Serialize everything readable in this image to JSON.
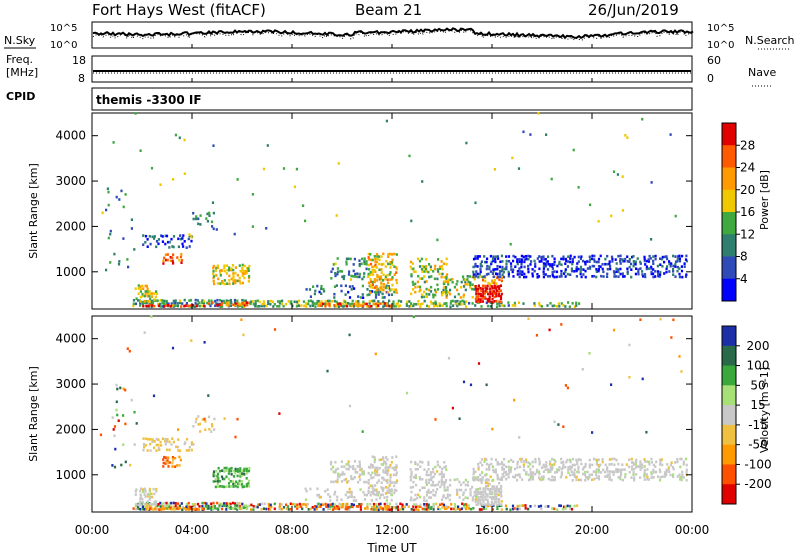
{
  "header": {
    "station": "Fort Hays West (fitACF)",
    "beam": "Beam 21",
    "date": "26/Jun/2019"
  },
  "status_panels": {
    "nsky_label": "N.Sky",
    "nsearch_label": "N.Search",
    "freq_label_line1": "Freq.",
    "freq_label_line2": "[MHz]",
    "nave_label": "Nave",
    "cpid_label": "CPID",
    "cpid_value": "themis -3300 IF",
    "noise_ticks_left": [
      "10^5",
      "10^0"
    ],
    "noise_ticks_right": [
      "10^5",
      "10^0"
    ],
    "freq_ticks": [
      "18",
      "8"
    ],
    "nave_ticks": [
      "60",
      "0"
    ]
  },
  "chart_data": [
    {
      "type": "heatmap",
      "name": "power",
      "ylabel": "Slant Range [km]",
      "xlabel": "Time UT",
      "x_ticks": [
        "00:00",
        "04:00",
        "08:00",
        "12:00",
        "16:00",
        "20:00",
        "00:00"
      ],
      "xlim_hours": [
        0,
        24
      ],
      "ylim_km": [
        180,
        4500
      ],
      "y_ticks": [
        1000,
        2000,
        3000,
        4000
      ],
      "colorbar": {
        "label": "Power [dB]",
        "ticks": [
          4,
          8,
          12,
          16,
          20,
          24,
          28
        ],
        "range": [
          0,
          32
        ],
        "colors": [
          "#0000ff",
          "#2f4bb8",
          "#2f7f6f",
          "#3fa83f",
          "#f0c800",
          "#ff9a00",
          "#ff5a00",
          "#e00000"
        ]
      },
      "scatter_regions": [
        {
          "t0": 1.6,
          "t1": 6.2,
          "r0": 200,
          "r1": 380,
          "density": 0.75,
          "level": 0.35
        },
        {
          "t0": 2.0,
          "t1": 4.5,
          "r0": 200,
          "r1": 280,
          "density": 0.7,
          "level": 0.9
        },
        {
          "t0": 4.5,
          "t1": 6.3,
          "r0": 220,
          "r1": 320,
          "density": 0.6,
          "level": 0.75
        },
        {
          "t0": 6.3,
          "t1": 15.0,
          "r0": 200,
          "r1": 360,
          "density": 0.6,
          "level": 0.45
        },
        {
          "t0": 9.0,
          "t1": 12.0,
          "r0": 210,
          "r1": 300,
          "density": 0.5,
          "level": 0.8
        },
        {
          "t0": 15.0,
          "t1": 19.5,
          "r0": 200,
          "r1": 330,
          "density": 0.45,
          "level": 0.4
        },
        {
          "t0": 1.7,
          "t1": 2.6,
          "r0": 300,
          "r1": 700,
          "density": 0.55,
          "level": 0.55
        },
        {
          "t0": 2.0,
          "t1": 4.0,
          "r0": 1500,
          "r1": 1800,
          "density": 0.4,
          "level": 0.2
        },
        {
          "t0": 2.8,
          "t1": 3.6,
          "r0": 1150,
          "r1": 1400,
          "density": 0.6,
          "level": 0.75
        },
        {
          "t0": 4.8,
          "t1": 6.3,
          "r0": 700,
          "r1": 1150,
          "density": 0.6,
          "level": 0.55
        },
        {
          "t0": 4.0,
          "t1": 5.0,
          "r0": 1900,
          "r1": 2300,
          "density": 0.2,
          "level": 0.3
        },
        {
          "t0": 0.5,
          "t1": 1.8,
          "r0": 1000,
          "r1": 2900,
          "density": 0.05,
          "level": 0.3
        },
        {
          "t0": 8.5,
          "t1": 12.0,
          "r0": 400,
          "r1": 700,
          "density": 0.25,
          "level": 0.25
        },
        {
          "t0": 9.5,
          "t1": 11.0,
          "r0": 800,
          "r1": 1300,
          "density": 0.3,
          "level": 0.35
        },
        {
          "t0": 11.0,
          "t1": 12.2,
          "r0": 500,
          "r1": 1400,
          "density": 0.45,
          "level": 0.6
        },
        {
          "t0": 12.7,
          "t1": 14.2,
          "r0": 400,
          "r1": 1300,
          "density": 0.35,
          "level": 0.5
        },
        {
          "t0": 14.0,
          "t1": 15.5,
          "r0": 400,
          "r1": 900,
          "density": 0.3,
          "level": 0.5
        },
        {
          "t0": 15.3,
          "t1": 16.4,
          "r0": 300,
          "r1": 700,
          "density": 0.9,
          "level": 0.95
        },
        {
          "t0": 15.5,
          "t1": 16.4,
          "r0": 700,
          "r1": 900,
          "density": 0.6,
          "level": 0.7
        },
        {
          "t0": 15.2,
          "t1": 23.8,
          "r0": 850,
          "r1": 1350,
          "density": 0.45,
          "level": 0.15
        },
        {
          "t0": 0.2,
          "t1": 23.8,
          "r0": 1500,
          "r1": 4500,
          "density": 0.004,
          "level": 0.4
        }
      ]
    },
    {
      "type": "heatmap",
      "name": "velocity",
      "ylabel": "Slant Range [km]",
      "xlabel": "Time UT",
      "x_ticks": [
        "00:00",
        "04:00",
        "08:00",
        "12:00",
        "16:00",
        "20:00",
        "00:00"
      ],
      "xlim_hours": [
        0,
        24
      ],
      "ylim_km": [
        180,
        4500
      ],
      "y_ticks": [
        1000,
        2000,
        3000,
        4000
      ],
      "colorbar": {
        "label": "Velocity [m s-1]",
        "ticks": [
          "200",
          "100",
          "50",
          "15",
          "-15",
          "-50",
          "-100",
          "-200"
        ],
        "colors": [
          "#1c2fa8",
          "#2a6a4a",
          "#3aa83a",
          "#a8e078",
          "#c8c8c8",
          "#f0c040",
          "#ff9a00",
          "#ff5000",
          "#e00000"
        ]
      },
      "scatter_regions": [
        {
          "t0": 1.6,
          "t1": 6.2,
          "r0": 200,
          "r1": 380,
          "density": 0.75,
          "kind": "mix"
        },
        {
          "t0": 2.0,
          "t1": 4.5,
          "r0": 200,
          "r1": 280,
          "density": 0.7,
          "kind": "neg"
        },
        {
          "t0": 4.5,
          "t1": 6.3,
          "r0": 220,
          "r1": 320,
          "density": 0.6,
          "kind": "pos"
        },
        {
          "t0": 6.3,
          "t1": 15.0,
          "r0": 200,
          "r1": 360,
          "density": 0.6,
          "kind": "mix"
        },
        {
          "t0": 9.0,
          "t1": 12.0,
          "r0": 210,
          "r1": 300,
          "density": 0.5,
          "kind": "neg"
        },
        {
          "t0": 15.0,
          "t1": 19.5,
          "r0": 200,
          "r1": 330,
          "density": 0.45,
          "kind": "mix"
        },
        {
          "t0": 1.7,
          "t1": 2.6,
          "r0": 300,
          "r1": 700,
          "density": 0.55,
          "kind": "gray"
        },
        {
          "t0": 2.0,
          "t1": 4.0,
          "r0": 1500,
          "r1": 1800,
          "density": 0.4,
          "kind": "tan"
        },
        {
          "t0": 2.8,
          "t1": 3.6,
          "r0": 1150,
          "r1": 1400,
          "density": 0.6,
          "kind": "neg"
        },
        {
          "t0": 4.8,
          "t1": 6.3,
          "r0": 700,
          "r1": 1150,
          "density": 0.6,
          "kind": "pos"
        },
        {
          "t0": 4.0,
          "t1": 5.0,
          "r0": 1900,
          "r1": 2300,
          "density": 0.2,
          "kind": "tan"
        },
        {
          "t0": 0.5,
          "t1": 1.8,
          "r0": 1000,
          "r1": 2900,
          "density": 0.05,
          "kind": "mix"
        },
        {
          "t0": 8.5,
          "t1": 12.0,
          "r0": 400,
          "r1": 700,
          "density": 0.25,
          "kind": "gray"
        },
        {
          "t0": 9.5,
          "t1": 11.0,
          "r0": 800,
          "r1": 1300,
          "density": 0.3,
          "kind": "gray"
        },
        {
          "t0": 11.0,
          "t1": 12.2,
          "r0": 500,
          "r1": 1400,
          "density": 0.45,
          "kind": "gray"
        },
        {
          "t0": 12.7,
          "t1": 14.2,
          "r0": 400,
          "r1": 1300,
          "density": 0.35,
          "kind": "gray"
        },
        {
          "t0": 14.0,
          "t1": 15.5,
          "r0": 400,
          "r1": 900,
          "density": 0.3,
          "kind": "gray"
        },
        {
          "t0": 15.3,
          "t1": 16.4,
          "r0": 300,
          "r1": 700,
          "density": 0.9,
          "kind": "gray"
        },
        {
          "t0": 15.5,
          "t1": 16.4,
          "r0": 700,
          "r1": 900,
          "density": 0.6,
          "kind": "gray"
        },
        {
          "t0": 15.2,
          "t1": 23.8,
          "r0": 850,
          "r1": 1350,
          "density": 0.45,
          "kind": "gray"
        },
        {
          "t0": 0.2,
          "t1": 23.8,
          "r0": 1500,
          "r1": 4500,
          "density": 0.004,
          "kind": "mix"
        }
      ]
    }
  ]
}
